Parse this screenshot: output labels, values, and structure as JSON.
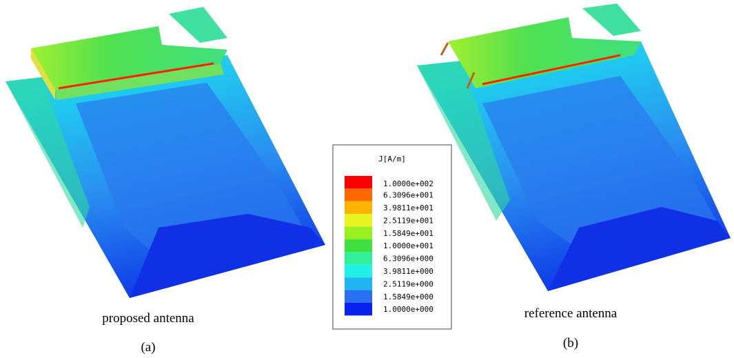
{
  "legend": {
    "title": "J[A/m]",
    "entries": [
      {
        "label": "1.0000e+002",
        "color": "#ff0000"
      },
      {
        "label": "6.3096e+001",
        "color": "#ff6a00"
      },
      {
        "label": "3.9811e+001",
        "color": "#ffb400"
      },
      {
        "label": "2.5119e+001",
        "color": "#e8f520"
      },
      {
        "label": "1.5849e+001",
        "color": "#98f020"
      },
      {
        "label": "1.0000e+001",
        "color": "#40e040"
      },
      {
        "label": "6.3096e+000",
        "color": "#30f09a"
      },
      {
        "label": "3.9811e+000",
        "color": "#20f0e6"
      },
      {
        "label": "2.5119e+000",
        "color": "#20b4f0"
      },
      {
        "label": "1.5849e+000",
        "color": "#2870f0"
      },
      {
        "label": "1.0000e+000",
        "color": "#0a22f0"
      }
    ]
  },
  "panels": [
    {
      "caption": "proposed antenna",
      "label": "(a)"
    },
    {
      "caption": "reference antenna",
      "label": "(b)"
    }
  ]
}
